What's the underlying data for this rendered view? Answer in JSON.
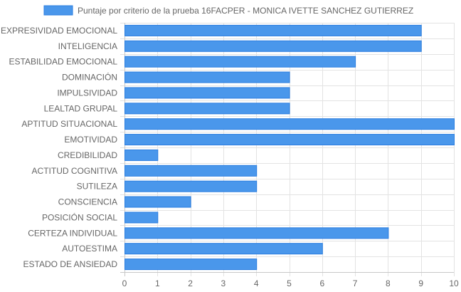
{
  "chart_data": {
    "type": "bar",
    "orientation": "horizontal",
    "categories": [
      "EXPRESIVIDAD EMOCIONAL",
      "INTELIGENCIA",
      "ESTABILIDAD EMOCIONAL",
      "DOMINACIÓN",
      "IMPULSIVIDAD",
      "LEALTAD GRUPAL",
      "APTITUD SITUACIONAL",
      "EMOTIVIDAD",
      "CREDIBILIDAD",
      "ACTITUD COGNITIVA",
      "SUTILEZA",
      "CONSCIENCIA",
      "POSICIÓN SOCIAL",
      "CERTEZA INDIVIDUAL",
      "AUTOESTIMA",
      "ESTADO DE ANSIEDAD"
    ],
    "series": [
      {
        "name": "Puntaje por criterio de la prueba 16FACPER - MONICA IVETTE SANCHEZ GUTIERREZ",
        "values": [
          9,
          9,
          7,
          5,
          5,
          5,
          10,
          10,
          1,
          4,
          4,
          2,
          1,
          8,
          6,
          4
        ],
        "color": "#4a97eb",
        "border_color": "#2a7de0"
      }
    ],
    "xticks": [
      "0",
      "1",
      "2",
      "3",
      "4",
      "5",
      "6",
      "7",
      "8",
      "9",
      "10"
    ],
    "xlim": [
      0,
      10
    ],
    "grid": true,
    "legend_position": "top"
  }
}
